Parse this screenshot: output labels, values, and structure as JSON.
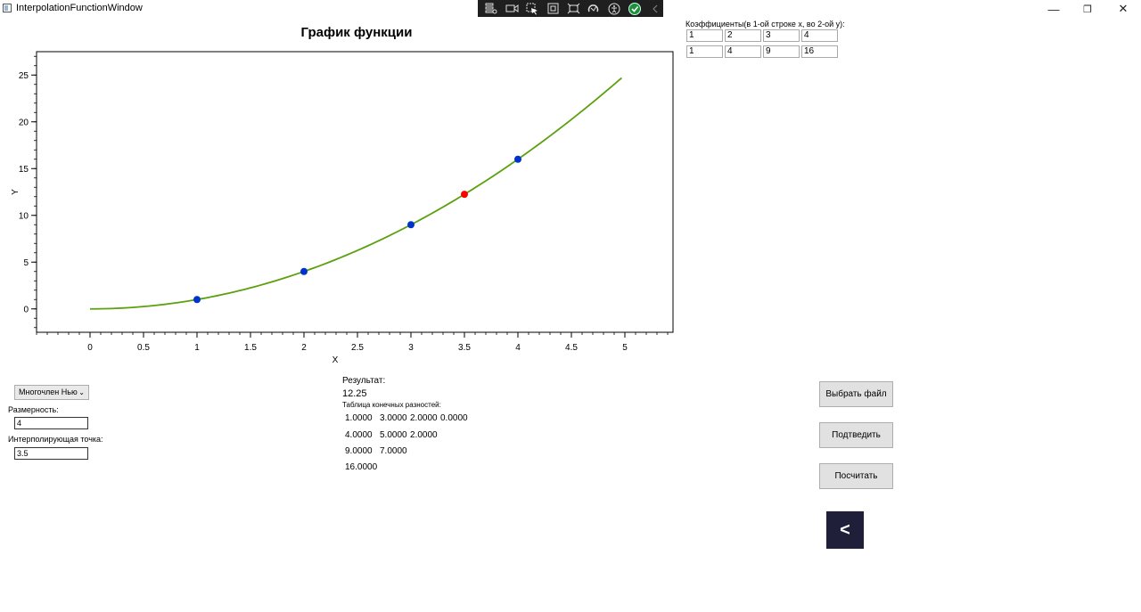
{
  "window": {
    "title": "InterpolationFunctionWindow",
    "minimize_glyph": "—",
    "restore_glyph": "❐",
    "close_glyph": "✕"
  },
  "debug_toolbar": {
    "icons": [
      "live-tree-icon",
      "record-icon",
      "select-element-icon",
      "adorner-icon",
      "layout-icon",
      "hot-reload-icon",
      "accessibility-icon",
      "check-icon",
      "collapse-icon"
    ]
  },
  "chart": {
    "title": "График функции"
  },
  "chart_data": {
    "type": "line",
    "title": "График функции",
    "xlabel": "X",
    "ylabel": "Y",
    "xlim": [
      -0.5,
      5.45
    ],
    "ylim": [
      -2.5,
      27.5
    ],
    "xticks": [
      0,
      0.5,
      1,
      1.5,
      2,
      2.5,
      3,
      3.5,
      4,
      4.5,
      5
    ],
    "yticks": [
      0,
      5,
      10,
      15,
      20,
      25
    ],
    "grid": false,
    "series": [
      {
        "type": "line",
        "x_range": [
          0,
          4.97
        ],
        "function": "x^2",
        "color": "#5aa00f"
      },
      {
        "type": "scatter",
        "x": [
          1,
          2,
          3,
          4
        ],
        "y": [
          1,
          4,
          9,
          16
        ],
        "color": "#0033cc"
      },
      {
        "type": "scatter",
        "x": [
          3.5
        ],
        "y": [
          12.25
        ],
        "color": "#ff0000"
      }
    ]
  },
  "coefficients": {
    "label": "Коэффициенты(в 1-ой строке x, во 2-ой y):",
    "rows": [
      [
        "1",
        "2",
        "3",
        "4"
      ],
      [
        "1",
        "4",
        "9",
        "16"
      ]
    ]
  },
  "controls": {
    "method": "Многочлен Нью",
    "dimension_label": "Размерность:",
    "dimension_value": "4",
    "point_label": "Интерполирующая точка:",
    "point_value": "3.5"
  },
  "result": {
    "label": "Результат:",
    "value": "12.25",
    "table_label": "Таблица конечных разностей:",
    "table": [
      [
        "1.0000",
        "3.0000",
        "2.0000",
        "0.0000"
      ],
      [
        "4.0000",
        "5.0000",
        "2.0000"
      ],
      [
        "9.0000",
        "7.0000"
      ],
      [
        "16.0000"
      ]
    ]
  },
  "buttons": {
    "choose_file": "Выбрать файл",
    "confirm": "Подтведить",
    "calculate": "Посчитать",
    "back": "<"
  }
}
